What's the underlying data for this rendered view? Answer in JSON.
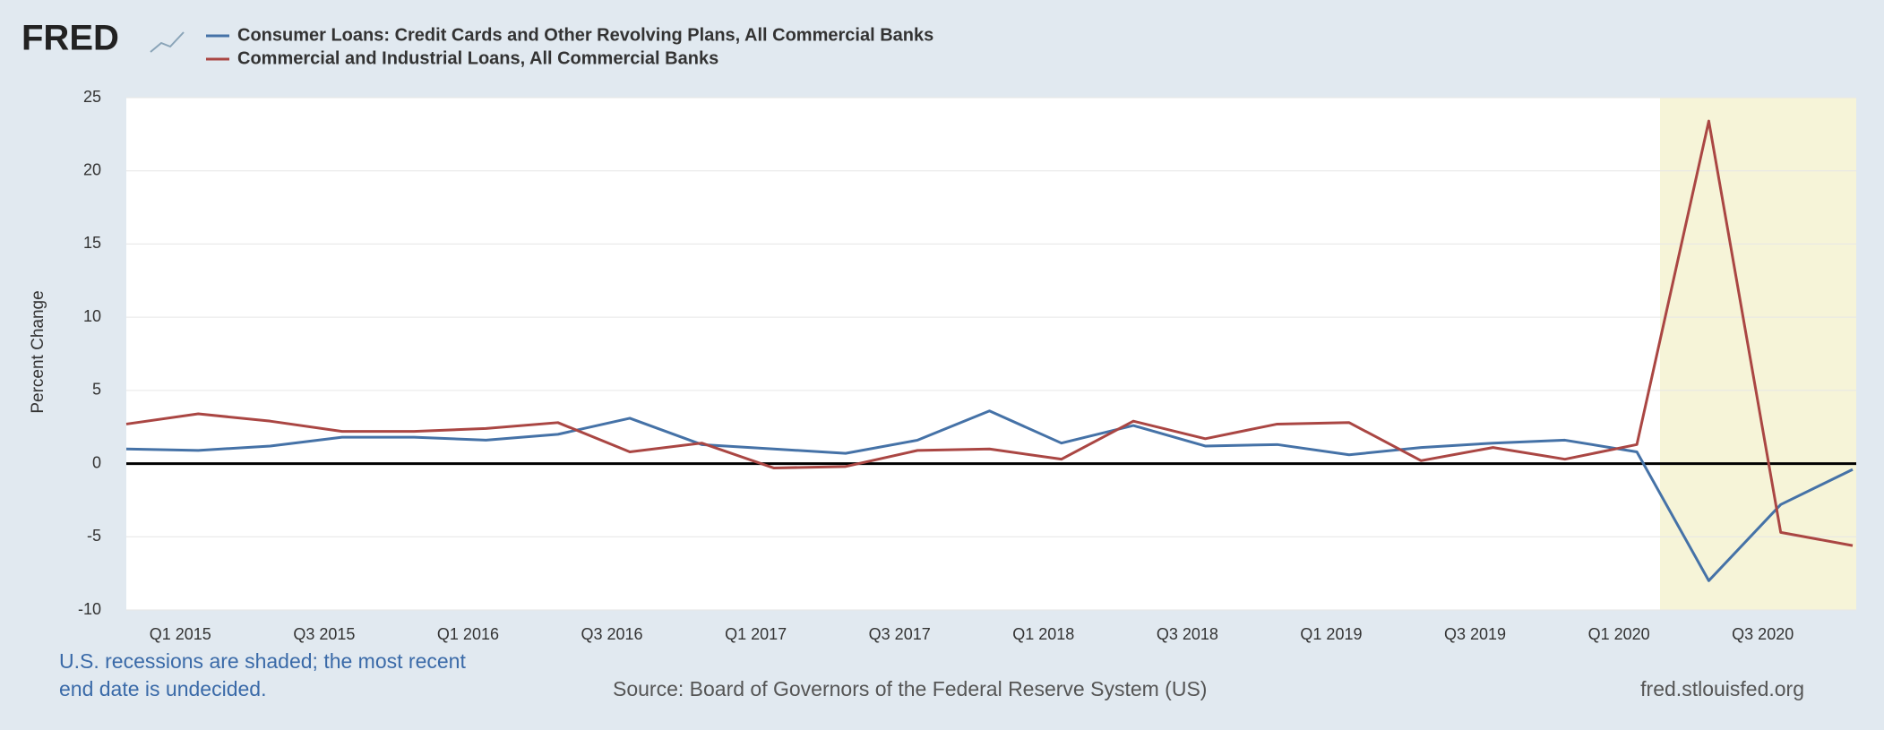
{
  "chart_data": {
    "type": "line",
    "logo": "FRED",
    "y_label": "Percent Change",
    "categories": [
      null,
      "Q1 2015",
      null,
      "Q3 2015",
      null,
      "Q1 2016",
      null,
      "Q3 2016",
      null,
      "Q1 2017",
      null,
      "Q3 2017",
      null,
      "Q1 2018",
      null,
      "Q3 2018",
      null,
      "Q1 2019",
      null,
      "Q3 2019",
      null,
      "Q1 2020",
      null,
      "Q3 2020",
      null
    ],
    "series": [
      {
        "name": "Consumer Loans: Credit Cards and Other Revolving Plans, All Commercial Banks",
        "color": "#4572a7",
        "values": [
          1.0,
          0.9,
          1.2,
          1.8,
          1.8,
          1.6,
          2.0,
          3.1,
          1.3,
          1.0,
          0.7,
          1.6,
          3.6,
          1.4,
          2.6,
          1.2,
          1.3,
          0.6,
          1.1,
          1.4,
          1.6,
          0.8,
          -8.0,
          -2.8,
          -0.4
        ]
      },
      {
        "name": "Commercial and Industrial Loans, All Commercial Banks",
        "color": "#aa4643",
        "values": [
          2.7,
          3.4,
          2.9,
          2.2,
          2.2,
          2.4,
          2.8,
          0.8,
          1.4,
          -0.3,
          -0.2,
          0.9,
          1.0,
          0.3,
          2.9,
          1.7,
          2.7,
          2.8,
          0.2,
          1.1,
          0.3,
          1.3,
          23.4,
          -4.7,
          -5.6
        ]
      }
    ],
    "ylim": [
      -10,
      25
    ],
    "yticks": [
      -10,
      -5,
      0,
      5,
      10,
      15,
      20,
      25
    ],
    "grid": true,
    "recession_note": [
      "U.S. recessions are shaded; the most recent",
      "end date is undecided."
    ],
    "source": "Source: Board of Governors of the Federal Reserve System (US)",
    "site": "fred.stlouisfed.org"
  }
}
